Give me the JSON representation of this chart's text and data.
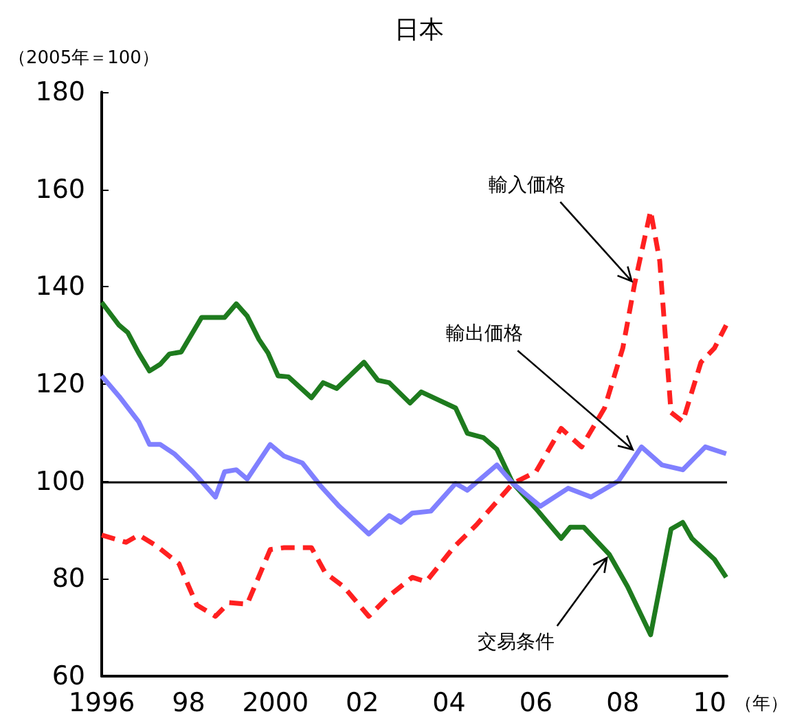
{
  "chart_data": {
    "type": "line",
    "title": "日本",
    "ylabel": "（2005年＝100）",
    "xlabel": "（年）",
    "xlim": [
      1996,
      2010.4
    ],
    "xticks": [
      {
        "value": 1996,
        "label": "1996"
      },
      {
        "value": 1998,
        "label": "98"
      },
      {
        "value": 2000,
        "label": "2000"
      },
      {
        "value": 2002,
        "label": "02"
      },
      {
        "value": 2004,
        "label": "04"
      },
      {
        "value": 2006,
        "label": "06"
      },
      {
        "value": 2008,
        "label": "08"
      },
      {
        "value": 2010,
        "label": "10"
      }
    ],
    "ylim": [
      60,
      180
    ],
    "yticks": [
      60,
      80,
      100,
      120,
      140,
      160,
      180
    ],
    "grid": false,
    "marker": "none",
    "ref_lines": [
      {
        "axis": "y",
        "value": 100,
        "color": "#000000",
        "line_style": "solid"
      }
    ],
    "annotations": [
      {
        "text": "輸入価格",
        "x": 2008.27,
        "y": 140.5
      },
      {
        "text": "輸出価格",
        "x": 2008.3,
        "y": 106
      },
      {
        "text": "交易条件",
        "x": 2007.69,
        "y": 85
      }
    ],
    "series": [
      {
        "color": "#1e7b1e",
        "line_style": "solid",
        "x": [
          1996.0,
          1996.4,
          1996.6,
          1996.85,
          1997.1,
          1997.35,
          1997.56,
          1997.83,
          1998.3,
          1998.83,
          1999.1,
          1999.35,
          1999.62,
          1999.83,
          2000.06,
          2000.3,
          2000.83,
          2001.1,
          2001.41,
          2002.04,
          2002.36,
          2002.62,
          2003.1,
          2003.36,
          2004.15,
          2004.42,
          2004.79,
          2005.1,
          2005.47,
          2006.0,
          2006.58,
          2006.79,
          2007.1,
          2007.69,
          2008.11,
          2008.64,
          2009.11,
          2009.38,
          2009.59,
          2010.11,
          2010.38
        ],
        "values": [
          136.8,
          132.1,
          130.6,
          126.4,
          122.7,
          124.1,
          126.2,
          126.6,
          133.7,
          133.7,
          136.5,
          134.0,
          129.2,
          126.4,
          121.7,
          121.5,
          117.2,
          120.3,
          119.1,
          124.5,
          120.8,
          120.3,
          116.1,
          118.4,
          115.1,
          109.9,
          109.0,
          106.6,
          99.6,
          94.4,
          88.3,
          90.6,
          90.6,
          85.0,
          78.4,
          68.5,
          90.2,
          91.6,
          88.3,
          84.0,
          80.3
        ]
      },
      {
        "color": "#8080ff",
        "line_style": "solid",
        "x": [
          1996.0,
          1996.4,
          1996.85,
          1997.1,
          1997.35,
          1997.67,
          1998.1,
          1998.62,
          1998.83,
          1999.1,
          1999.35,
          1999.88,
          2000.2,
          2000.62,
          2001.04,
          2001.47,
          2002.15,
          2002.62,
          2002.89,
          2003.15,
          2003.58,
          2004.15,
          2004.42,
          2005.1,
          2005.47,
          2006.1,
          2006.74,
          2007.27,
          2007.9,
          2008.43,
          2008.9,
          2009.38,
          2009.9,
          2010.38
        ],
        "values": [
          121.7,
          117.5,
          112.3,
          107.6,
          107.6,
          105.7,
          102.0,
          96.8,
          102.0,
          102.4,
          100.5,
          107.6,
          105.2,
          103.8,
          99.1,
          94.9,
          89.2,
          93.0,
          91.6,
          93.5,
          93.9,
          99.6,
          98.2,
          103.4,
          99.6,
          94.9,
          98.6,
          96.8,
          100.1,
          107.1,
          103.4,
          102.4,
          107.1,
          105.7
        ]
      },
      {
        "color": "#ff2020",
        "line_style": "dashed",
        "x": [
          1996.0,
          1996.56,
          1996.85,
          1997.24,
          1997.78,
          1998.19,
          1998.62,
          1998.93,
          1999.35,
          1999.88,
          2000.2,
          2000.83,
          2001.15,
          2001.57,
          2002.15,
          2002.62,
          2003.15,
          2003.47,
          2004.1,
          2004.63,
          2005.47,
          2006.0,
          2006.58,
          2007.05,
          2007.58,
          2008.0,
          2008.27,
          2008.64,
          2008.85,
          2009.11,
          2009.38,
          2009.8,
          2010.11,
          2010.38
        ],
        "values": [
          89.0,
          87.5,
          89.0,
          86.9,
          83.1,
          74.6,
          72.3,
          75.1,
          74.8,
          86.0,
          86.4,
          86.4,
          81.2,
          78.4,
          72.3,
          76.5,
          80.3,
          79.4,
          86.4,
          91.1,
          99.6,
          102.0,
          110.9,
          107.1,
          115.1,
          127.4,
          140.5,
          155.6,
          145.3,
          114.2,
          112.3,
          124.5,
          127.4,
          132.1
        ]
      }
    ]
  }
}
